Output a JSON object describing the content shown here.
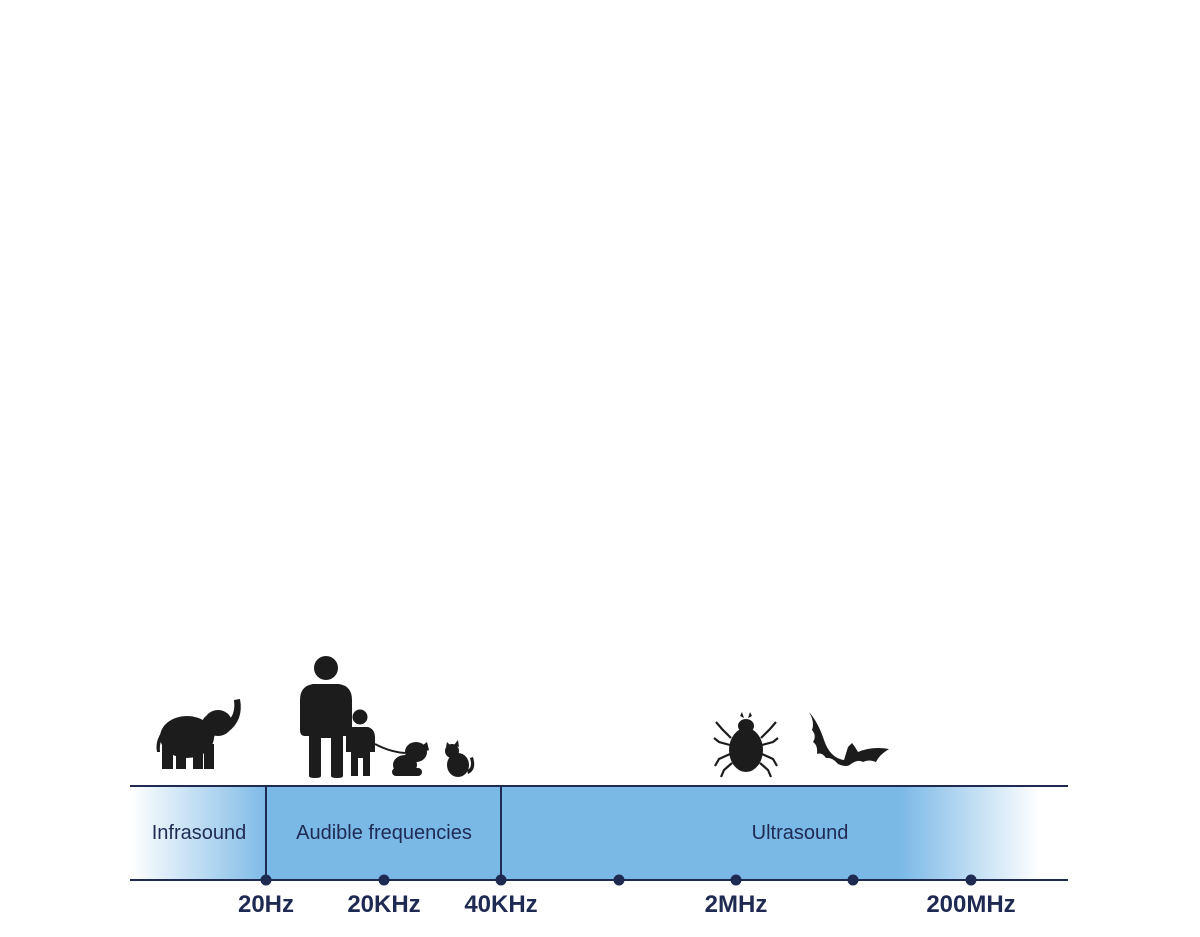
{
  "bands": [
    {
      "label": "Infrasound"
    },
    {
      "label": "Audible frequencies"
    },
    {
      "label": "Ultrasound"
    }
  ],
  "ticks": [
    {
      "label": "20Hz"
    },
    {
      "label": "20KHz"
    },
    {
      "label": "40KHz"
    },
    {
      "label": ""
    },
    {
      "label": "2MHz"
    },
    {
      "label": ""
    },
    {
      "label": "200MHz"
    }
  ],
  "animals": [
    {
      "icon": "elephant-icon",
      "band": "Infrasound"
    },
    {
      "icon": "adult-icon",
      "band": "Audible frequencies"
    },
    {
      "icon": "child-icon",
      "band": "Audible frequencies"
    },
    {
      "icon": "dog-icon",
      "band": "Audible frequencies"
    },
    {
      "icon": "cat-icon",
      "band": "Audible frequencies"
    },
    {
      "icon": "tick-insect-icon",
      "band": "Ultrasound"
    },
    {
      "icon": "bat-icon",
      "band": "Ultrasound"
    }
  ],
  "colors": {
    "band_fill": "#7ab8e6",
    "band_edge": "#ffffff",
    "line": "#1e2a52",
    "silhouette": "#1c1c1c"
  }
}
